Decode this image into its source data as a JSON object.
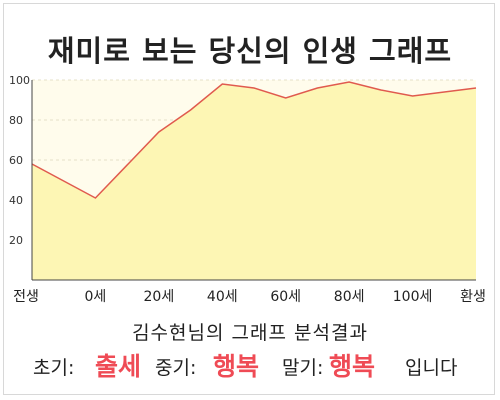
{
  "title": "재미로 보는 당신의 인생 그래프",
  "chart_data": {
    "type": "area",
    "x_labels": [
      "전생",
      "0세",
      "20세",
      "40세",
      "60세",
      "80세",
      "100세",
      "환생"
    ],
    "x": [
      -20,
      0,
      20,
      40,
      60,
      80,
      100,
      120
    ],
    "points": [
      {
        "x": -20,
        "y": 58
      },
      {
        "x": 0,
        "y": 41
      },
      {
        "x": 20,
        "y": 74
      },
      {
        "x": 30,
        "y": 85
      },
      {
        "x": 40,
        "y": 98
      },
      {
        "x": 50,
        "y": 96
      },
      {
        "x": 60,
        "y": 91
      },
      {
        "x": 70,
        "y": 96
      },
      {
        "x": 80,
        "y": 99
      },
      {
        "x": 90,
        "y": 95
      },
      {
        "x": 100,
        "y": 92
      },
      {
        "x": 120,
        "y": 96
      }
    ],
    "y_ticks": [
      20,
      40,
      60,
      80,
      100
    ],
    "ylim": [
      0,
      100
    ],
    "xlim": [
      -20,
      120
    ],
    "grid": true,
    "line_color": "#e05a4e",
    "fill_color": "#fdf6b4",
    "plot_bg_color": "#fffcec"
  },
  "subtitle": "김수현님의 그래프 분석결과",
  "result": {
    "early_label": "초기:",
    "early_value": "출세",
    "mid_label": "중기:",
    "mid_value": "행복",
    "late_label": "말기:",
    "late_value": "행복",
    "ending": "입니다"
  }
}
